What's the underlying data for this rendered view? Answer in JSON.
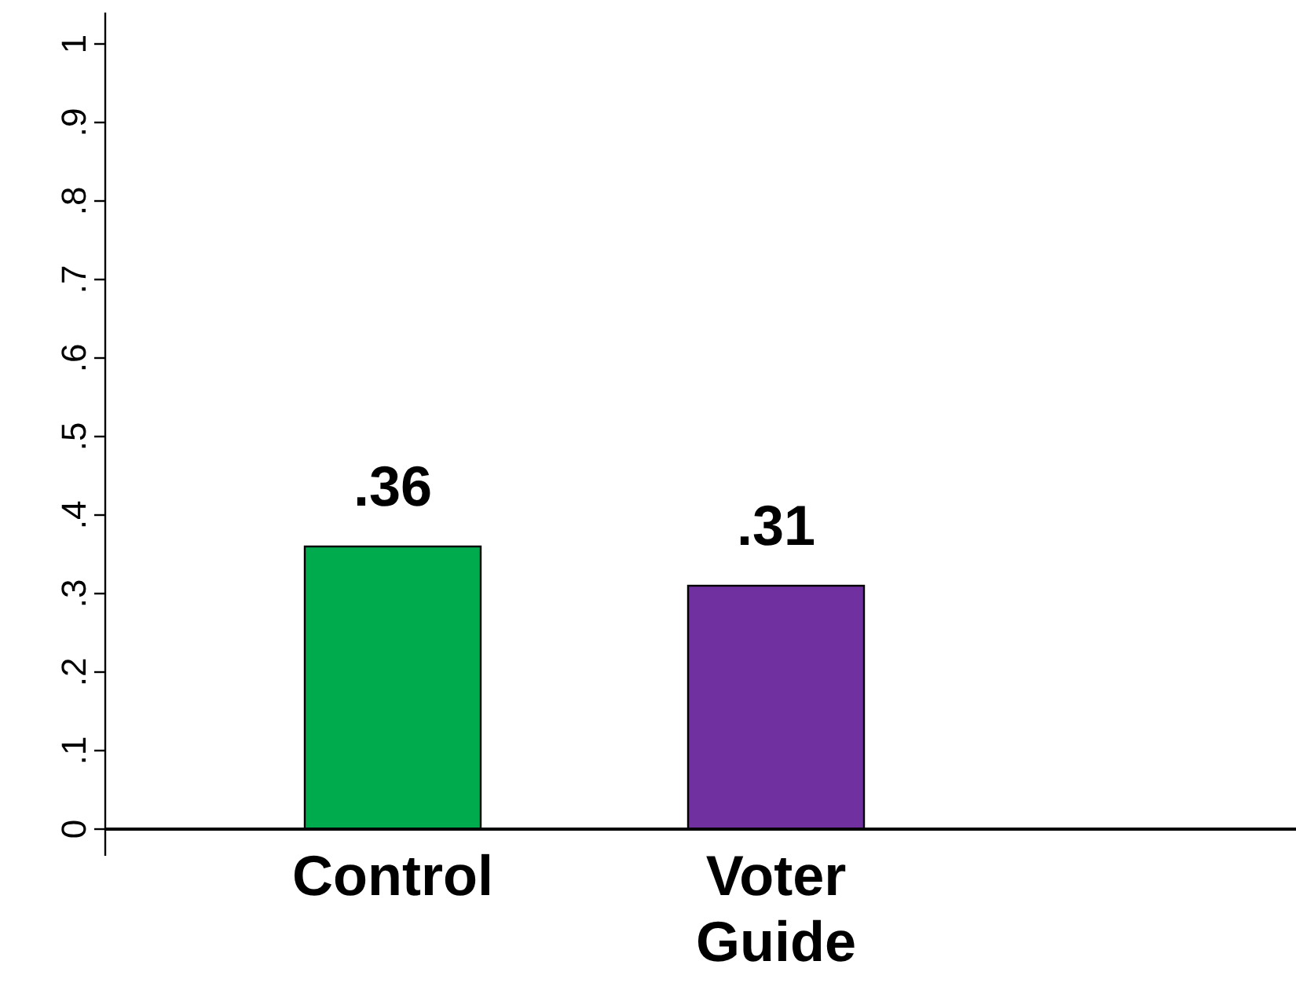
{
  "chart_data": {
    "type": "bar",
    "categories": [
      "Control",
      "Voter Guide"
    ],
    "values": [
      0.36,
      0.31
    ],
    "colors": [
      "#00ab4e",
      "#7030a0"
    ],
    "ylim": [
      0,
      1.04
    ],
    "yticks": [
      0,
      {
        "value": 0.1,
        "label": ".1"
      },
      {
        "value": 0.2,
        "label": ".2"
      },
      {
        "value": 0.3,
        "label": ".3"
      },
      {
        "value": 0.4,
        "label": ".4"
      },
      {
        "value": 0.5,
        "label": ".5"
      },
      {
        "value": 0.6,
        "label": ".6"
      },
      {
        "value": 0.7,
        "label": ".7"
      },
      {
        "value": 0.8,
        "label": ".8"
      },
      {
        "value": 0.9,
        "label": ".9"
      },
      1
    ],
    "value_labels": [
      ".36",
      ".31"
    ],
    "grid": false
  }
}
